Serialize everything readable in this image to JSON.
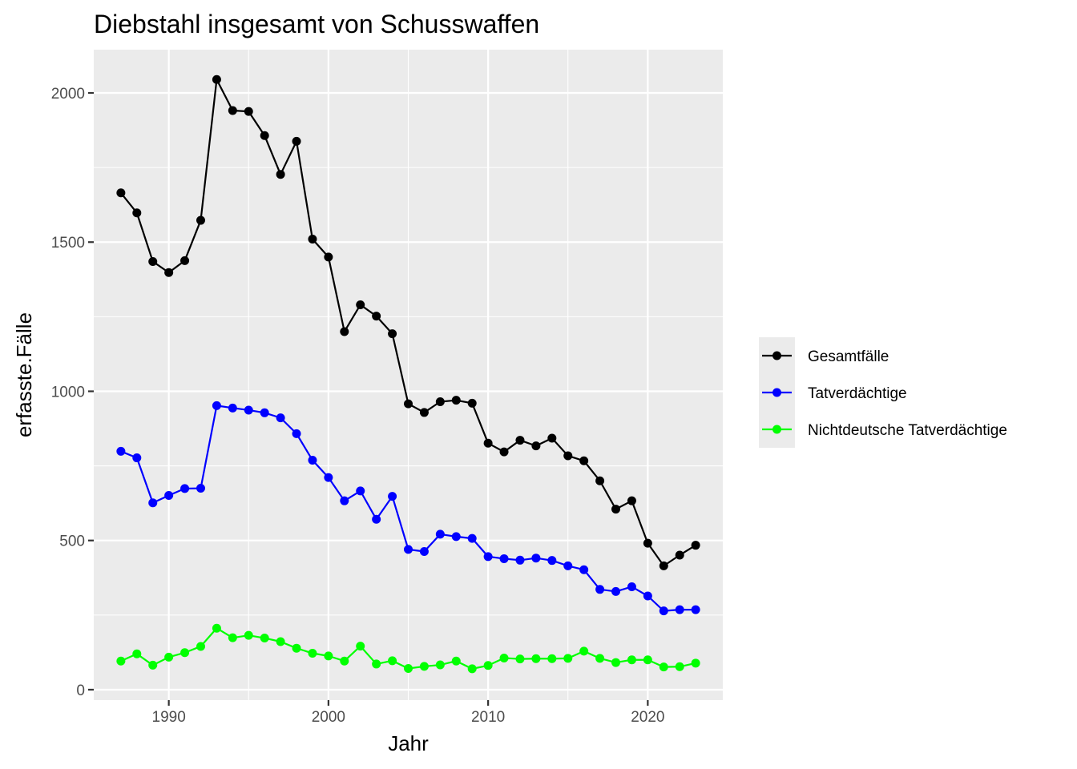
{
  "chart_data": {
    "type": "line",
    "title": "Diebstahl insgesamt von Schusswaffen",
    "xlabel": "Jahr",
    "ylabel": "erfasste.Fälle",
    "xlim": [
      1985.3,
      2024.7
    ],
    "ylim": [
      -35,
      2145
    ],
    "x_ticks": [
      1990,
      2000,
      2010,
      2020
    ],
    "y_ticks": [
      0,
      500,
      1000,
      1500,
      2000
    ],
    "grid": true,
    "legend_position": "right",
    "x": [
      1987,
      1988,
      1989,
      1990,
      1991,
      1992,
      1993,
      1994,
      1995,
      1996,
      1997,
      1998,
      1999,
      2000,
      2001,
      2002,
      2003,
      2004,
      2005,
      2006,
      2007,
      2008,
      2009,
      2010,
      2011,
      2012,
      2013,
      2014,
      2015,
      2016,
      2017,
      2018,
      2019,
      2020,
      2021,
      2022,
      2023
    ],
    "series": [
      {
        "name": "Gesamtfälle",
        "color": "#000000",
        "values": [
          1665,
          1598,
          1435,
          1398,
          1438,
          1573,
          2045,
          1941,
          1938,
          1857,
          1727,
          1838,
          1510,
          1450,
          1200,
          1290,
          1252,
          1193,
          958,
          929,
          965,
          970,
          960,
          826,
          797,
          836,
          817,
          843,
          784,
          767,
          700,
          605,
          633,
          491,
          415,
          451,
          484
        ]
      },
      {
        "name": "Tatverdächtige",
        "color": "#0000ff",
        "values": [
          799,
          777,
          626,
          651,
          674,
          675,
          952,
          944,
          937,
          928,
          911,
          858,
          769,
          711,
          633,
          666,
          571,
          648,
          470,
          463,
          521,
          513,
          507,
          446,
          439,
          434,
          441,
          433,
          415,
          402,
          336,
          329,
          345,
          314,
          264,
          268,
          268
        ]
      },
      {
        "name": "Nichtdeutsche Tatverdächtige",
        "color": "#00ff00",
        "values": [
          96,
          120,
          82,
          109,
          124,
          145,
          206,
          174,
          182,
          173,
          161,
          139,
          122,
          113,
          96,
          146,
          86,
          97,
          71,
          78,
          83,
          96,
          70,
          81,
          106,
          103,
          104,
          104,
          105,
          129,
          105,
          91,
          100,
          100,
          76,
          77,
          89
        ]
      }
    ]
  }
}
